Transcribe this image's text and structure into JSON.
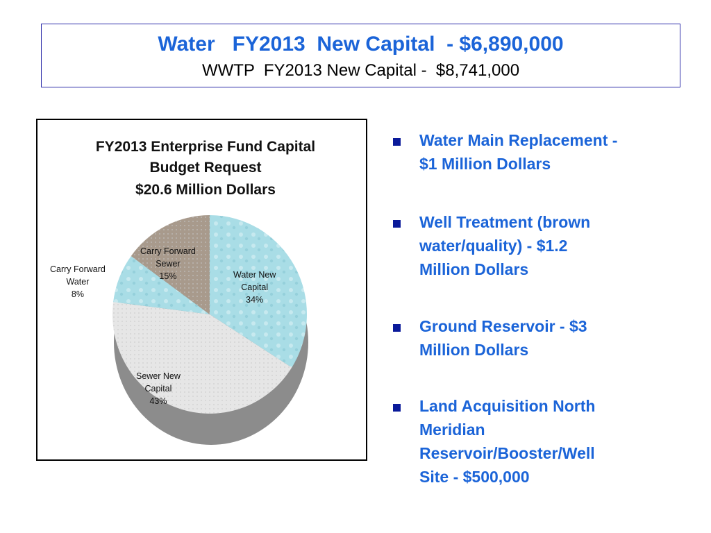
{
  "header": {
    "title": "Water   FY2013  New Capital  - $6,890,000",
    "subtitle": "WWTP  FY2013 New Capital -  $8,741,000"
  },
  "chart_data": {
    "type": "pie",
    "title_lines": [
      "FY2013 Enterprise Fund Capital",
      "Budget Request",
      "$20.6 Million Dollars"
    ],
    "slices": [
      {
        "name_lines": [
          "Water New",
          "Capital"
        ],
        "value": 34,
        "label": "34%",
        "color": "#a9dde6"
      },
      {
        "name_lines": [
          "Sewer New",
          "Capital"
        ],
        "value": 43,
        "label": "43%",
        "color": "#e6e6e6"
      },
      {
        "name_lines": [
          "Carry Forward",
          "Water"
        ],
        "value": 8,
        "label": "8%",
        "color": "#a9dde6"
      },
      {
        "name_lines": [
          "Carry Forward",
          "Sewer"
        ],
        "value": 15,
        "label": "15%",
        "color": "#a89a8c"
      }
    ]
  },
  "bullets": [
    {
      "lines": [
        "Water Main Replacement -",
        "$1 Million Dollars"
      ]
    },
    {
      "lines": [
        "Well Treatment (brown",
        "water/quality) - $1.2",
        "Million Dollars"
      ]
    },
    {
      "lines": [
        "Ground Reservoir - $3",
        "Million Dollars"
      ]
    },
    {
      "lines": [
        "Land Acquisition North",
        "Meridian",
        "Reservoir/Booster/Well",
        "Site - $500,000"
      ]
    }
  ],
  "colors": {
    "title_blue": "#1b64d8",
    "bullet_square": "#0a1a9a",
    "frame": "#2a2aa8"
  }
}
